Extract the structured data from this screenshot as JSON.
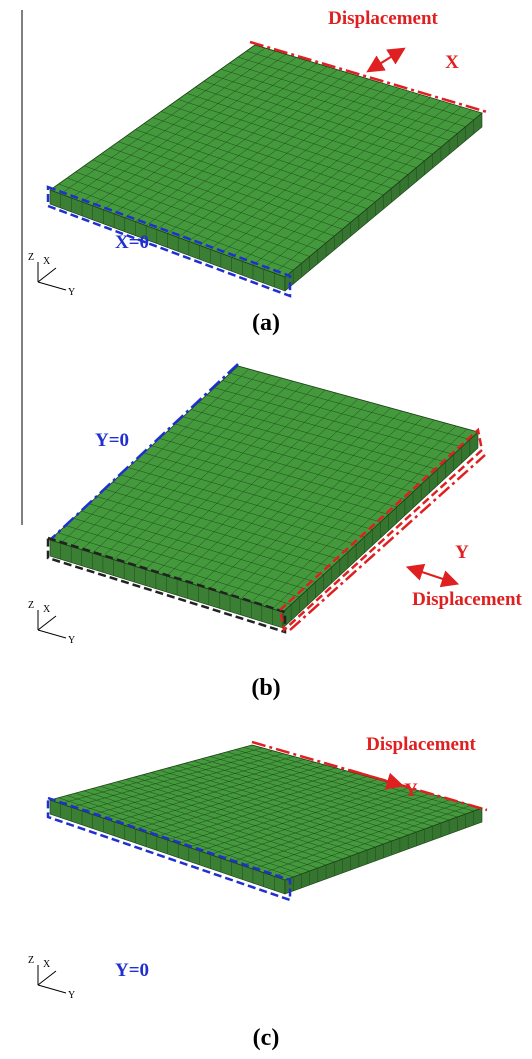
{
  "panels": [
    {
      "caption": "(a)",
      "labels": [
        "Displacement",
        "X",
        "X=0"
      ],
      "axes": [
        "Z",
        "X",
        "Y"
      ]
    },
    {
      "caption": "(b)",
      "labels": [
        "Y=0",
        "Y",
        "Displacement"
      ],
      "axes": [
        "Z",
        "X",
        "Y"
      ]
    },
    {
      "caption": "(c)",
      "labels": [
        "Displacement",
        "Y",
        "Y=0"
      ],
      "axes": [
        "Z",
        "X",
        "Y"
      ]
    }
  ]
}
